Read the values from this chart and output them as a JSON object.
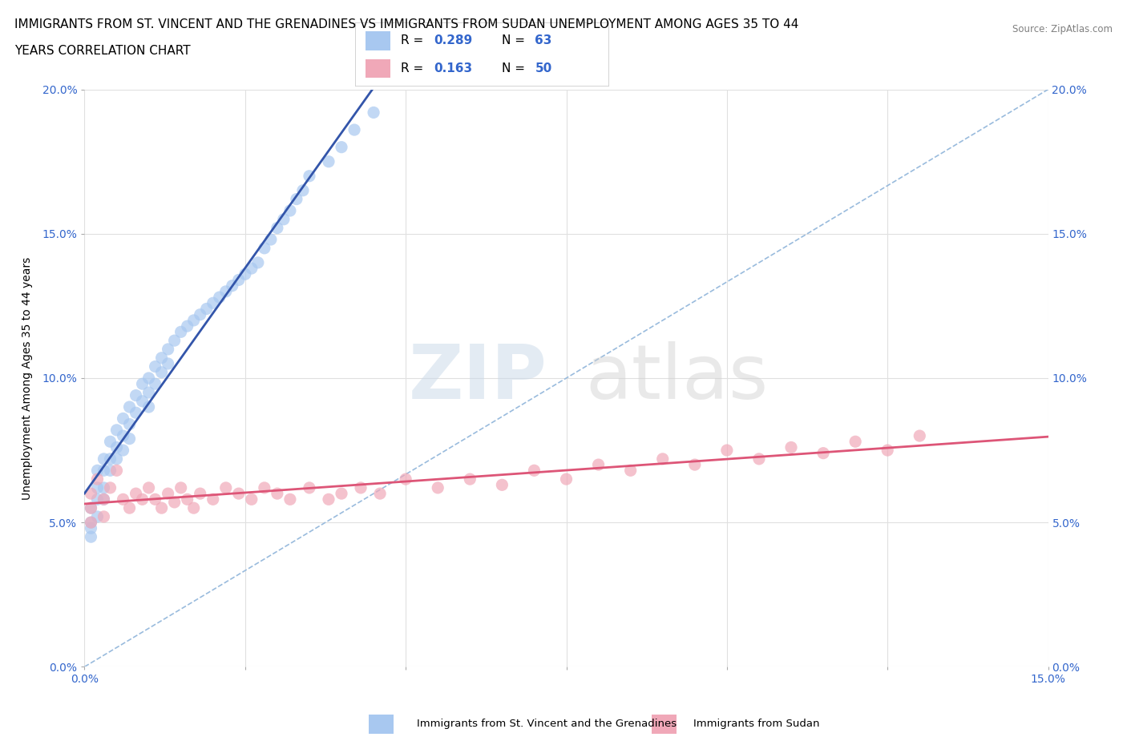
{
  "title_line1": "IMMIGRANTS FROM ST. VINCENT AND THE GRENADINES VS IMMIGRANTS FROM SUDAN UNEMPLOYMENT AMONG AGES 35 TO 44",
  "title_line2": "YEARS CORRELATION CHART",
  "source_text": "Source: ZipAtlas.com",
  "ylabel": "Unemployment Among Ages 35 to 44 years",
  "xlim": [
    0.0,
    0.15
  ],
  "ylim": [
    0.0,
    0.2
  ],
  "xticks": [
    0.0,
    0.025,
    0.05,
    0.075,
    0.1,
    0.125,
    0.15
  ],
  "xtick_labels": [
    "0.0%",
    "",
    "",
    "",
    "",
    "",
    "15.0%"
  ],
  "ytick_labels": [
    "0.0%",
    "5.0%",
    "10.0%",
    "15.0%",
    "20.0%"
  ],
  "yticks": [
    0.0,
    0.05,
    0.1,
    0.15,
    0.2
  ],
  "watermark_zip": "ZIP",
  "watermark_atlas": "atlas",
  "legend_r1": "0.289",
  "legend_n1": "63",
  "legend_r2": "0.163",
  "legend_n2": "50",
  "color_vincent": "#a8c8f0",
  "color_sudan": "#f0a8b8",
  "trendline_color_vincent": "#3355aa",
  "trendline_color_sudan": "#dd5577",
  "diag_line_color": "#99bbdd",
  "background_color": "#ffffff",
  "grid_color": "#e0e0e0",
  "vincent_x": [
    0.001,
    0.001,
    0.001,
    0.001,
    0.002,
    0.002,
    0.002,
    0.002,
    0.003,
    0.003,
    0.003,
    0.003,
    0.004,
    0.004,
    0.004,
    0.005,
    0.005,
    0.005,
    0.006,
    0.006,
    0.006,
    0.007,
    0.007,
    0.007,
    0.008,
    0.008,
    0.009,
    0.009,
    0.01,
    0.01,
    0.01,
    0.011,
    0.011,
    0.012,
    0.012,
    0.013,
    0.013,
    0.014,
    0.015,
    0.016,
    0.017,
    0.018,
    0.019,
    0.02,
    0.021,
    0.022,
    0.023,
    0.024,
    0.025,
    0.026,
    0.027,
    0.028,
    0.029,
    0.03,
    0.031,
    0.032,
    0.033,
    0.034,
    0.035,
    0.038,
    0.04,
    0.042,
    0.045
  ],
  "vincent_y": [
    0.055,
    0.05,
    0.048,
    0.045,
    0.068,
    0.062,
    0.058,
    0.052,
    0.072,
    0.068,
    0.062,
    0.058,
    0.078,
    0.072,
    0.068,
    0.082,
    0.076,
    0.072,
    0.086,
    0.08,
    0.075,
    0.09,
    0.084,
    0.079,
    0.094,
    0.088,
    0.098,
    0.092,
    0.1,
    0.095,
    0.09,
    0.104,
    0.098,
    0.107,
    0.102,
    0.11,
    0.105,
    0.113,
    0.116,
    0.118,
    0.12,
    0.122,
    0.124,
    0.126,
    0.128,
    0.13,
    0.132,
    0.134,
    0.136,
    0.138,
    0.14,
    0.145,
    0.148,
    0.152,
    0.155,
    0.158,
    0.162,
    0.165,
    0.17,
    0.175,
    0.18,
    0.186,
    0.192
  ],
  "sudan_x": [
    0.001,
    0.001,
    0.001,
    0.002,
    0.003,
    0.003,
    0.004,
    0.005,
    0.006,
    0.007,
    0.008,
    0.009,
    0.01,
    0.011,
    0.012,
    0.013,
    0.014,
    0.015,
    0.016,
    0.017,
    0.018,
    0.02,
    0.022,
    0.024,
    0.026,
    0.028,
    0.03,
    0.032,
    0.035,
    0.038,
    0.04,
    0.043,
    0.046,
    0.05,
    0.055,
    0.06,
    0.065,
    0.07,
    0.075,
    0.08,
    0.085,
    0.09,
    0.095,
    0.1,
    0.105,
    0.11,
    0.115,
    0.12,
    0.125,
    0.13
  ],
  "sudan_y": [
    0.06,
    0.055,
    0.05,
    0.065,
    0.058,
    0.052,
    0.062,
    0.068,
    0.058,
    0.055,
    0.06,
    0.058,
    0.062,
    0.058,
    0.055,
    0.06,
    0.057,
    0.062,
    0.058,
    0.055,
    0.06,
    0.058,
    0.062,
    0.06,
    0.058,
    0.062,
    0.06,
    0.058,
    0.062,
    0.058,
    0.06,
    0.062,
    0.06,
    0.065,
    0.062,
    0.065,
    0.063,
    0.068,
    0.065,
    0.07,
    0.068,
    0.072,
    0.07,
    0.075,
    0.072,
    0.076,
    0.074,
    0.078,
    0.075,
    0.08
  ]
}
